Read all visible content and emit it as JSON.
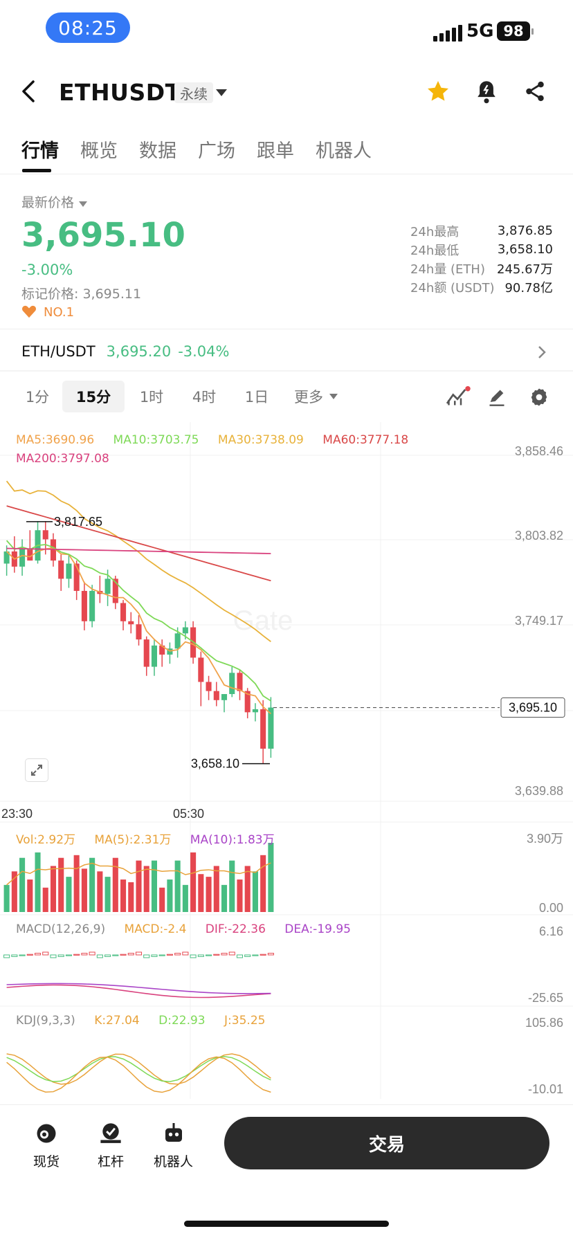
{
  "status_bar": {
    "time": "08:25",
    "network": "5G",
    "battery": "98"
  },
  "header": {
    "title": "ETHUSDT",
    "tag": "永续"
  },
  "tabs": [
    "行情",
    "概览",
    "数据",
    "广场",
    "跟单",
    "机器人"
  ],
  "price_panel": {
    "latest_label": "最新价格",
    "price": "3,695.10",
    "change": "-3.00%",
    "mark_label": "标记价格: 3,695.11",
    "rank": "NO.1",
    "stats": [
      {
        "label": "24h最高",
        "value": "3,876.85"
      },
      {
        "label": "24h最低",
        "value": "3,658.10"
      },
      {
        "label": "24h量 (ETH)",
        "value": "245.67万"
      },
      {
        "label": "24h额 (USDT)",
        "value": "90.78亿"
      }
    ]
  },
  "spot_row": {
    "pair": "ETH/USDT",
    "price": "3,695.20",
    "change": "-3.04%"
  },
  "intervals": {
    "items": [
      "1分",
      "15分",
      "1时",
      "4时",
      "1日"
    ],
    "more": "更多",
    "active": "15分"
  },
  "icons": [
    "indicator-icon",
    "draw-icon",
    "settings-icon",
    "expand-icon"
  ],
  "colors": {
    "up": "#47bd82",
    "down": "#e5474f",
    "accent": "#f5b50a"
  },
  "chart_data": {
    "type": "candlestick",
    "interval": "15分",
    "ma_legend": [
      {
        "label": "MA5:3690.96",
        "color": "#f0a24a"
      },
      {
        "label": "MA10:3703.75",
        "color": "#7ed957"
      },
      {
        "label": "MA30:3738.09",
        "color": "#e8b23a"
      },
      {
        "label": "MA60:3777.18",
        "color": "#d94848"
      },
      {
        "label": "MA200:3797.08",
        "color": "#d9427e"
      }
    ],
    "y_ticks": [
      "3,858.46",
      "3,803.82",
      "3,749.17",
      "3,639.88"
    ],
    "x_ticks": [
      "23:30",
      "05:30"
    ],
    "ylim": [
      3639.88,
      3858.46
    ],
    "high_marker": "3,817.65",
    "low_marker": "3,658.10",
    "current_price": "3,695.10",
    "candles": [
      [
        3790,
        3802,
        3782,
        3798
      ],
      [
        3798,
        3808,
        3784,
        3788
      ],
      [
        3788,
        3806,
        3782,
        3800
      ],
      [
        3800,
        3812,
        3792,
        3792
      ],
      [
        3792,
        3818,
        3790,
        3812
      ],
      [
        3812,
        3818,
        3796,
        3806
      ],
      [
        3806,
        3810,
        3788,
        3792
      ],
      [
        3792,
        3796,
        3772,
        3780
      ],
      [
        3780,
        3796,
        3774,
        3790
      ],
      [
        3790,
        3792,
        3766,
        3772
      ],
      [
        3772,
        3778,
        3746,
        3752
      ],
      [
        3752,
        3776,
        3748,
        3772
      ],
      [
        3772,
        3782,
        3764,
        3770
      ],
      [
        3770,
        3786,
        3762,
        3780
      ],
      [
        3780,
        3782,
        3760,
        3764
      ],
      [
        3764,
        3766,
        3746,
        3752
      ],
      [
        3752,
        3758,
        3744,
        3750
      ],
      [
        3750,
        3756,
        3736,
        3740
      ],
      [
        3740,
        3742,
        3716,
        3722
      ],
      [
        3722,
        3740,
        3716,
        3736
      ],
      [
        3736,
        3740,
        3722,
        3730
      ],
      [
        3730,
        3738,
        3724,
        3734
      ],
      [
        3734,
        3748,
        3728,
        3744
      ],
      [
        3744,
        3752,
        3740,
        3748
      ],
      [
        3748,
        3752,
        3724,
        3728
      ],
      [
        3728,
        3732,
        3696,
        3712
      ],
      [
        3712,
        3716,
        3700,
        3706
      ],
      [
        3706,
        3712,
        3696,
        3700
      ],
      [
        3700,
        3704,
        3692,
        3704
      ],
      [
        3704,
        3722,
        3702,
        3718
      ],
      [
        3718,
        3720,
        3700,
        3706
      ],
      [
        3706,
        3708,
        3688,
        3692
      ],
      [
        3692,
        3698,
        3686,
        3694
      ],
      [
        3694,
        3700,
        3658,
        3668
      ],
      [
        3668,
        3702,
        3662,
        3695.1
      ]
    ],
    "volume": {
      "legend": [
        "Vol:2.92万",
        "MA(5):2.31万",
        "MA(10):1.83万"
      ],
      "y_ticks": [
        "3.90万",
        "0.00"
      ]
    },
    "macd": {
      "legend": [
        "MACD(12,26,9)",
        "MACD:-2.4",
        "DIF:-22.36",
        "DEA:-19.95"
      ],
      "y_ticks": [
        "6.16",
        "-25.65"
      ]
    },
    "kdj": {
      "legend": [
        "KDJ(9,3,3)",
        "K:27.04",
        "D:22.93",
        "J:35.25"
      ],
      "y_ticks": [
        "105.86",
        "-10.01"
      ]
    }
  },
  "bottom_nav": {
    "items": [
      "现货",
      "杠杆",
      "机器人"
    ],
    "trade": "交易"
  }
}
